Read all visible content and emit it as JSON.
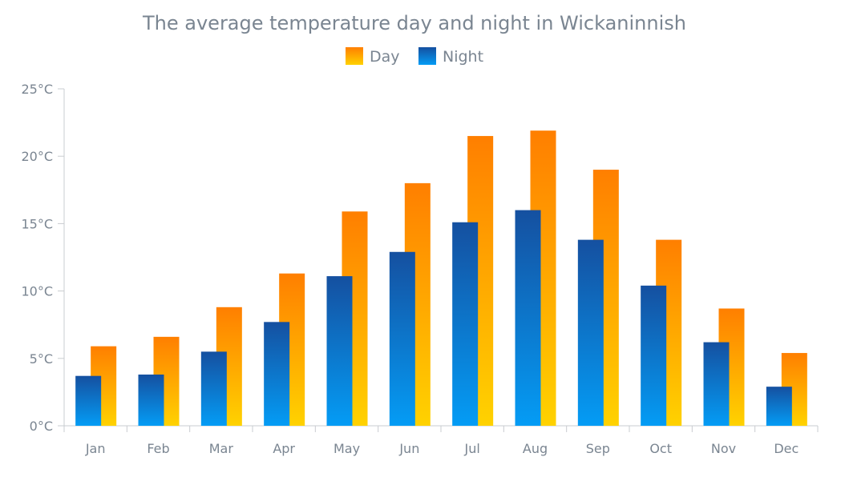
{
  "chart_data": {
    "type": "bar",
    "title": "The average temperature day and night in Wickaninnish",
    "categories": [
      "Jan",
      "Feb",
      "Mar",
      "Apr",
      "May",
      "Jun",
      "Jul",
      "Aug",
      "Sep",
      "Oct",
      "Nov",
      "Dec"
    ],
    "series": [
      {
        "name": "Night",
        "values": [
          3.7,
          3.8,
          5.5,
          7.7,
          11.1,
          12.9,
          15.1,
          16.0,
          13.8,
          10.4,
          6.2,
          2.9
        ]
      },
      {
        "name": "Day",
        "values": [
          5.9,
          6.6,
          8.8,
          11.3,
          15.9,
          18.0,
          21.5,
          21.9,
          19.0,
          13.8,
          8.7,
          5.4
        ]
      }
    ],
    "ylim": [
      0,
      25
    ],
    "yticks": [
      "0°C",
      "5°C",
      "10°C",
      "15°C",
      "20°C",
      "25°C"
    ],
    "legend": {
      "position": "top",
      "items": [
        {
          "name": "Day",
          "color_top": "#ff7f00",
          "color_bottom": "#ffd200"
        },
        {
          "name": "Night",
          "color_top": "#1550a0",
          "color_bottom": "#049cf5"
        }
      ]
    },
    "colors": {
      "day_top": "#ff7f00",
      "day_bottom": "#ffd200",
      "night_top": "#1550a0",
      "night_bottom": "#049cf5",
      "axis": "#c9ccd0",
      "text": "#7a8591"
    },
    "grid": false
  }
}
